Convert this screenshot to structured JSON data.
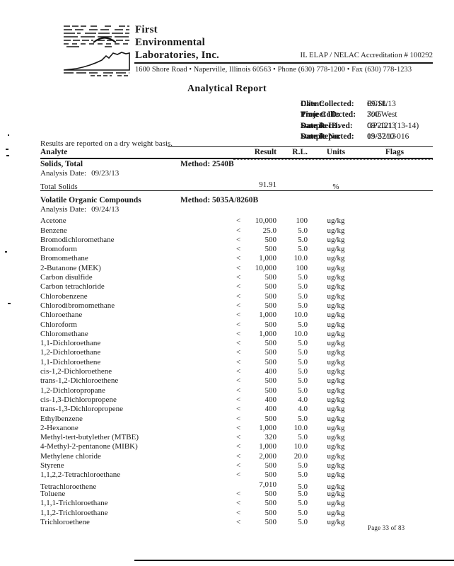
{
  "header": {
    "logo_icon": "landscape-sketch-logo",
    "company_lines": [
      "First",
      "Environmental",
      "Laboratories, Inc."
    ],
    "accreditation": "IL ELAP / NELAC Accreditation # 100292",
    "address": "1600 Shore Road • Naperville, Illinois 60563 • Phone (630) 778-1200 • Fax (630) 778-1233"
  },
  "title": "Analytical Report",
  "info": {
    "left": [
      {
        "label": "Client:",
        "value": "EGSL"
      },
      {
        "label": "Project ID:",
        "value": "300 West"
      },
      {
        "label": "Sample ID:",
        "value": "GP-121 (13-14)"
      },
      {
        "label": "Sample No:",
        "value": "13-5210-016"
      }
    ],
    "right": [
      {
        "label": "Date Collected:",
        "value": "09/18/13"
      },
      {
        "label": "Time Collected:",
        "value": "7:45"
      },
      {
        "label": "Date Received:",
        "value": "09/20/13"
      },
      {
        "label": "Date Reported:",
        "value": "09/27/13"
      }
    ],
    "note": "Results are reported on a dry weight basis."
  },
  "table": {
    "columns": [
      "Analyte",
      "Result",
      "R.L.",
      "Units",
      "Flags"
    ],
    "sections": [
      {
        "name": "Solids, Total",
        "method": "Method: 2540B",
        "analysis_date_label": "Analysis Date:",
        "analysis_date": "09/23/13",
        "divider_after": true,
        "rows": [
          {
            "analyte": "Total Solids",
            "q": "",
            "result": "91.91",
            "rl": "",
            "units": "%",
            "flags": ""
          }
        ]
      },
      {
        "name": "Volatile Organic Compounds",
        "method": "Method: 5035A/8260B",
        "analysis_date_label": "Analysis Date:",
        "analysis_date": "09/24/13",
        "divider_after": false,
        "rows": [
          {
            "analyte": "Acetone",
            "q": "<",
            "result": "10,000",
            "rl": "100",
            "units": "ug/kg",
            "flags": ""
          },
          {
            "analyte": "Benzene",
            "q": "<",
            "result": "25.0",
            "rl": "5.0",
            "units": "ug/kg",
            "flags": ""
          },
          {
            "analyte": "Bromodichloromethane",
            "q": "<",
            "result": "500",
            "rl": "5.0",
            "units": "ug/kg",
            "flags": ""
          },
          {
            "analyte": "Bromoform",
            "q": "<",
            "result": "500",
            "rl": "5.0",
            "units": "ug/kg",
            "flags": ""
          },
          {
            "analyte": "Bromomethane",
            "q": "<",
            "result": "1,000",
            "rl": "10.0",
            "units": "ug/kg",
            "flags": ""
          },
          {
            "analyte": "2-Butanone (MEK)",
            "q": "<",
            "result": "10,000",
            "rl": "100",
            "units": "ug/kg",
            "flags": ""
          },
          {
            "analyte": "Carbon disulfide",
            "q": "<",
            "result": "500",
            "rl": "5.0",
            "units": "ug/kg",
            "flags": ""
          },
          {
            "analyte": "Carbon tetrachloride",
            "q": "<",
            "result": "500",
            "rl": "5.0",
            "units": "ug/kg",
            "flags": ""
          },
          {
            "analyte": "Chlorobenzene",
            "q": "<",
            "result": "500",
            "rl": "5.0",
            "units": "ug/kg",
            "flags": ""
          },
          {
            "analyte": "Chlorodibromomethane",
            "q": "<",
            "result": "500",
            "rl": "5.0",
            "units": "ug/kg",
            "flags": ""
          },
          {
            "analyte": "Chloroethane",
            "q": "<",
            "result": "1,000",
            "rl": "10.0",
            "units": "ug/kg",
            "flags": ""
          },
          {
            "analyte": "Chloroform",
            "q": "<",
            "result": "500",
            "rl": "5.0",
            "units": "ug/kg",
            "flags": ""
          },
          {
            "analyte": "Chloromethane",
            "q": "<",
            "result": "1,000",
            "rl": "10.0",
            "units": "ug/kg",
            "flags": ""
          },
          {
            "analyte": "1,1-Dichloroethane",
            "q": "<",
            "result": "500",
            "rl": "5.0",
            "units": "ug/kg",
            "flags": ""
          },
          {
            "analyte": "1,2-Dichloroethane",
            "q": "<",
            "result": "500",
            "rl": "5.0",
            "units": "ug/kg",
            "flags": ""
          },
          {
            "analyte": "1,1-Dichloroethene",
            "q": "<",
            "result": "500",
            "rl": "5.0",
            "units": "ug/kg",
            "flags": ""
          },
          {
            "analyte": "cis-1,2-Dichloroethene",
            "q": "<",
            "result": "400",
            "rl": "5.0",
            "units": "ug/kg",
            "flags": ""
          },
          {
            "analyte": "trans-1,2-Dichloroethene",
            "q": "<",
            "result": "500",
            "rl": "5.0",
            "units": "ug/kg",
            "flags": ""
          },
          {
            "analyte": "1,2-Dichloropropane",
            "q": "<",
            "result": "500",
            "rl": "5.0",
            "units": "ug/kg",
            "flags": ""
          },
          {
            "analyte": "cis-1,3-Dichloropropene",
            "q": "<",
            "result": "400",
            "rl": "4.0",
            "units": "ug/kg",
            "flags": ""
          },
          {
            "analyte": "trans-1,3-Dichloropropene",
            "q": "<",
            "result": "400",
            "rl": "4.0",
            "units": "ug/kg",
            "flags": ""
          },
          {
            "analyte": "Ethylbenzene",
            "q": "<",
            "result": "500",
            "rl": "5.0",
            "units": "ug/kg",
            "flags": ""
          },
          {
            "analyte": "2-Hexanone",
            "q": "<",
            "result": "1,000",
            "rl": "10.0",
            "units": "ug/kg",
            "flags": ""
          },
          {
            "analyte": "Methyl-tert-butylether (MTBE)",
            "q": "<",
            "result": "320",
            "rl": "5.0",
            "units": "ug/kg",
            "flags": ""
          },
          {
            "analyte": "4-Methyl-2-pentanone (MIBK)",
            "q": "<",
            "result": "1,000",
            "rl": "10.0",
            "units": "ug/kg",
            "flags": ""
          },
          {
            "analyte": "Methylene chloride",
            "q": "<",
            "result": "2,000",
            "rl": "20.0",
            "units": "ug/kg",
            "flags": ""
          },
          {
            "analyte": "Styrene",
            "q": "<",
            "result": "500",
            "rl": "5.0",
            "units": "ug/kg",
            "flags": ""
          },
          {
            "analyte": "1,1,2,2-Tetrachloroethane",
            "q": "<",
            "result": "500",
            "rl": "5.0",
            "units": "ug/kg",
            "flags": ""
          },
          {
            "analyte": "Tetrachloroethene",
            "q": "",
            "result": "7,010",
            "rl": "5.0",
            "units": "ug/kg",
            "flags": ""
          },
          {
            "analyte": "Toluene",
            "q": "<",
            "result": "500",
            "rl": "5.0",
            "units": "ug/kg",
            "flags": ""
          },
          {
            "analyte": "1,1,1-Trichloroethane",
            "q": "<",
            "result": "500",
            "rl": "5.0",
            "units": "ug/kg",
            "flags": ""
          },
          {
            "analyte": "1,1,2-Trichloroethane",
            "q": "<",
            "result": "500",
            "rl": "5.0",
            "units": "ug/kg",
            "flags": ""
          },
          {
            "analyte": "Trichloroethene",
            "q": "<",
            "result": "500",
            "rl": "5.0",
            "units": "ug/kg",
            "flags": ""
          }
        ]
      }
    ]
  },
  "footer": {
    "page_label": "Page 33 of 83"
  }
}
